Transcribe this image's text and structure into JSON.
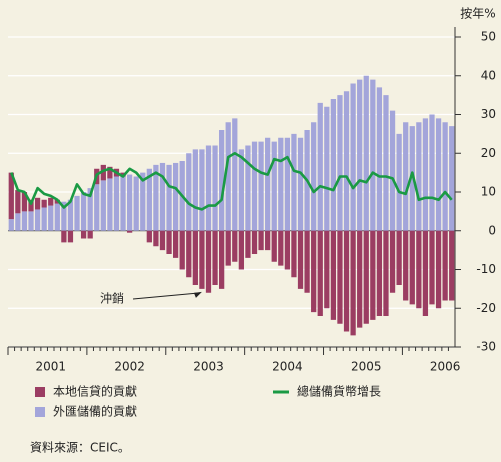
{
  "chart_data": {
    "type": "bar",
    "y_axis_label": "按年%",
    "categories": [
      null,
      null,
      null,
      null,
      null,
      null,
      "2001",
      null,
      null,
      null,
      null,
      null,
      null,
      null,
      null,
      null,
      null,
      null,
      "2002",
      null,
      null,
      null,
      null,
      null,
      null,
      null,
      null,
      null,
      null,
      null,
      "2003",
      null,
      null,
      null,
      null,
      null,
      null,
      null,
      null,
      null,
      null,
      null,
      "2004",
      null,
      null,
      null,
      null,
      null,
      null,
      null,
      null,
      null,
      null,
      null,
      "2005",
      null,
      null,
      null,
      null,
      null,
      null,
      null,
      null,
      null,
      null,
      null,
      "2006",
      null
    ],
    "series": [
      {
        "name": "本地信貸的貢獻",
        "color": "#9b3d62",
        "type": "bar",
        "values": [
          12,
          6,
          5,
          3,
          3,
          2,
          2,
          1,
          -3,
          -3,
          0,
          -2,
          -2,
          4,
          4,
          3,
          2,
          1,
          -0.5,
          0,
          0,
          -3,
          -4,
          -5,
          -6,
          -7,
          -10,
          -12,
          -14,
          -15,
          -16,
          -14,
          -15,
          -9,
          -8,
          -10,
          -7,
          -6,
          -5,
          -5,
          -8,
          -9,
          -10,
          -12,
          -15,
          -16,
          -21,
          -22,
          -20,
          -23,
          -24,
          -26,
          -27,
          -25,
          -24,
          -23,
          -22,
          -22,
          -16,
          -14,
          -18,
          -19,
          -20,
          -22,
          -19,
          -20,
          -18,
          -18
        ]
      },
      {
        "name": "外匯儲備的貢獻",
        "color": "#a3a5da",
        "type": "bar",
        "values": [
          3,
          4.5,
          5,
          5,
          5.5,
          6,
          6.5,
          7,
          7.5,
          8,
          9,
          10,
          11,
          12,
          13,
          13.5,
          14,
          14,
          14.5,
          14,
          15,
          16,
          17,
          17.5,
          17,
          17.5,
          18,
          20,
          21,
          21,
          22,
          22,
          26,
          28,
          29,
          21,
          22,
          23,
          23,
          24,
          23,
          24,
          24,
          25,
          24,
          26,
          28,
          33,
          32,
          34,
          35,
          36,
          38,
          39,
          40,
          39,
          37,
          35,
          31,
          25,
          28,
          27,
          28,
          29,
          30,
          29,
          28,
          27
        ]
      },
      {
        "name": "總儲備貨幣增長",
        "color": "#1a9a44",
        "type": "line",
        "values": [
          15,
          10.5,
          10,
          7,
          11,
          9.5,
          9,
          8,
          6,
          7.5,
          12,
          9.5,
          9,
          14.5,
          15.5,
          16,
          15,
          14,
          16,
          15,
          13,
          14,
          15,
          14,
          11.5,
          11,
          9,
          7,
          6,
          5.5,
          6.5,
          6.5,
          8,
          19,
          20,
          19,
          17.5,
          16,
          15,
          14.5,
          18.5,
          18,
          19,
          15.5,
          15,
          13,
          10,
          11.5,
          11,
          10.5,
          14,
          14,
          11,
          13,
          12.5,
          15,
          14,
          14,
          13.5,
          10,
          9.5,
          15,
          8,
          8.5,
          8.5,
          8,
          10,
          8
        ]
      }
    ],
    "ylim": [
      -30,
      50
    ],
    "yticks": [
      -30,
      -20,
      -10,
      0,
      10,
      20,
      30,
      40,
      50
    ],
    "grid": true,
    "annotation": {
      "text": "沖銷",
      "index": 29
    },
    "source": "資料來源：CEIC。"
  }
}
